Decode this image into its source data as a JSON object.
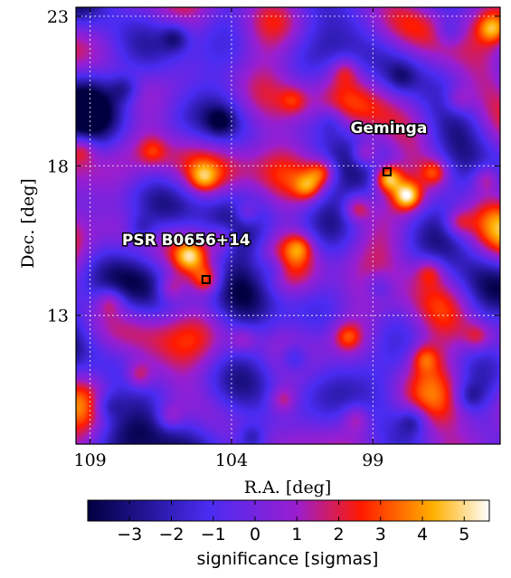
{
  "chart_data": {
    "type": "heatmap",
    "title": "",
    "xlabel": "R.A. [deg]",
    "ylabel": "Dec. [deg]",
    "xlim": [
      109.5,
      94.5
    ],
    "ylim": [
      8.7,
      23.3
    ],
    "x_ticks": [
      109,
      104,
      99
    ],
    "x_tick_labels": [
      "109",
      "104",
      "99"
    ],
    "y_ticks": [
      13,
      18,
      23
    ],
    "y_tick_labels": [
      "13",
      "18",
      "23"
    ],
    "grid": true,
    "colormap": "gnuplot2",
    "colors": {
      "low": "#000040",
      "mid_low": "#4a2cf2",
      "mid": "#9a1ed0",
      "mid_high": "#ff1a00",
      "high": "#ffb000",
      "max": "#ffffff"
    },
    "colorbar": {
      "label": "significance [sigmas]",
      "range": [
        -4,
        5.6
      ],
      "ticks": [
        -3,
        -2,
        -1,
        0,
        1,
        2,
        3,
        4,
        5
      ],
      "tick_labels": [
        "−3",
        "−2",
        "−1",
        "0",
        "1",
        "2",
        "3",
        "4",
        "5"
      ]
    },
    "annotations": [
      {
        "text": "Geminga",
        "ra": 98.5,
        "dec": 17.8,
        "significance_peak": 5.5
      },
      {
        "text": "PSR B0656+14",
        "ra": 104.9,
        "dec": 14.2,
        "significance_peak": 3.2
      }
    ],
    "hotspots": [
      {
        "ra": 98.5,
        "dec": 17.6,
        "sigma": 5.5
      },
      {
        "ra": 97.8,
        "dec": 17.0,
        "sigma": 5.0
      },
      {
        "ra": 99.3,
        "dec": 18.4,
        "sigma": 3.8
      },
      {
        "ra": 100.8,
        "dec": 17.8,
        "sigma": 3.3
      },
      {
        "ra": 101.3,
        "dec": 17.3,
        "sigma": 3.0
      },
      {
        "ra": 96.8,
        "dec": 17.8,
        "sigma": 3.0
      },
      {
        "ra": 99.6,
        "dec": 16.6,
        "sigma": 3.3
      },
      {
        "ra": 96.0,
        "dec": 16.1,
        "sigma": 2.8
      },
      {
        "ra": 95.0,
        "dec": 17.6,
        "sigma": 2.7
      },
      {
        "ra": 104.9,
        "dec": 14.2,
        "sigma": 3.2
      },
      {
        "ra": 105.5,
        "dec": 15.0,
        "sigma": 2.9
      },
      {
        "ra": 104.3,
        "dec": 15.6,
        "sigma": 2.7
      },
      {
        "ra": 103.5,
        "dec": 16.4,
        "sigma": 2.9
      },
      {
        "ra": 106.2,
        "dec": 13.9,
        "sigma": 2.7
      },
      {
        "ra": 107.3,
        "dec": 11.0,
        "sigma": 3.0
      },
      {
        "ra": 108.3,
        "dec": 13.5,
        "sigma": 2.6
      },
      {
        "ra": 99.9,
        "dec": 12.3,
        "sigma": 2.8
      },
      {
        "ra": 101.6,
        "dec": 15.3,
        "sigma": 2.6
      },
      {
        "ra": 94.8,
        "dec": 22.6,
        "sigma": 3.1
      },
      {
        "ra": 97.2,
        "dec": 11.6,
        "sigma": 2.6
      },
      {
        "ra": 105.0,
        "dec": 17.6,
        "sigma": 2.5
      },
      {
        "ra": 102.2,
        "dec": 10.2,
        "sigma": 2.4
      },
      {
        "ra": 97.0,
        "dec": 14.5,
        "sigma": 2.5
      },
      {
        "ra": 109.3,
        "dec": 18.6,
        "sigma": 2.5
      },
      {
        "ra": 100.0,
        "dec": 21.2,
        "sigma": 2.2
      },
      {
        "ra": 101.8,
        "dec": 20.2,
        "sigma": 2.0
      },
      {
        "ra": 96.0,
        "dec": 20.2,
        "sigma": 2.2
      },
      {
        "ra": 106.2,
        "dec": 9.6,
        "sigma": 2.3
      },
      {
        "ra": 95.3,
        "dec": 12.3,
        "sigma": 2.4
      },
      {
        "ra": 99.6,
        "dec": 9.6,
        "sigma": 2.2
      },
      {
        "ra": 103.6,
        "dec": 12.2,
        "sigma": 2.0
      },
      {
        "ra": 106.8,
        "dec": 18.5,
        "sigma": 2.0
      }
    ],
    "coldspots": [
      {
        "ra": 106.0,
        "dec": 22.3,
        "sigma": -2.6
      },
      {
        "ra": 107.8,
        "dec": 20.6,
        "sigma": -2.2
      },
      {
        "ra": 104.4,
        "dec": 19.5,
        "sigma": -2.1
      },
      {
        "ra": 101.8,
        "dec": 11.6,
        "sigma": -2.4
      },
      {
        "ra": 97.6,
        "dec": 9.5,
        "sigma": -2.5
      },
      {
        "ra": 103.3,
        "dec": 8.9,
        "sigma": -2.4
      },
      {
        "ra": 102.5,
        "dec": 14.6,
        "sigma": -1.8
      },
      {
        "ra": 107.2,
        "dec": 15.9,
        "sigma": -2.0
      },
      {
        "ra": 98.8,
        "dec": 14.0,
        "sigma": -1.8
      },
      {
        "ra": 95.6,
        "dec": 10.3,
        "sigma": -2.0
      },
      {
        "ra": 96.3,
        "dec": 22.5,
        "sigma": -2.0
      },
      {
        "ra": 108.4,
        "dec": 10.0,
        "sigma": -2.1
      },
      {
        "ra": 100.5,
        "dec": 19.5,
        "sigma": -1.6
      },
      {
        "ra": 98.0,
        "dec": 21.0,
        "sigma": -1.5
      }
    ]
  }
}
